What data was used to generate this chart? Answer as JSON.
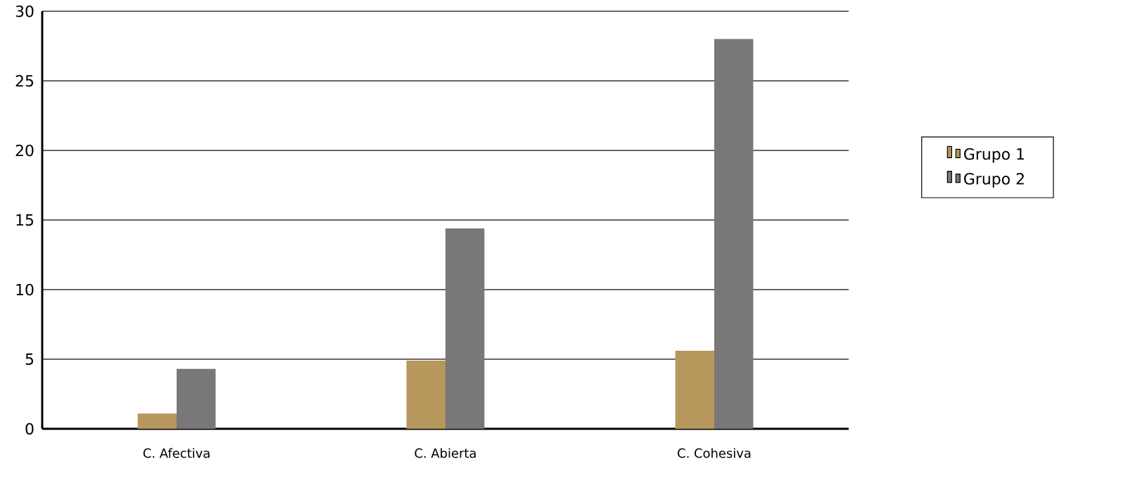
{
  "chart_data": {
    "type": "bar",
    "categories": [
      "C. Afectiva",
      "C. Abierta",
      "C. Cohesiva"
    ],
    "series": [
      {
        "name": "Grupo 1",
        "color": "#b8975c",
        "values": [
          1.1,
          4.9,
          5.6
        ]
      },
      {
        "name": "Grupo 2",
        "color": "#797778",
        "values": [
          4.3,
          14.4,
          28
        ]
      }
    ],
    "ylim": [
      0,
      30
    ],
    "yticks": [
      0,
      5,
      10,
      15,
      20,
      25,
      30
    ],
    "grid": "y",
    "legend": "right"
  }
}
